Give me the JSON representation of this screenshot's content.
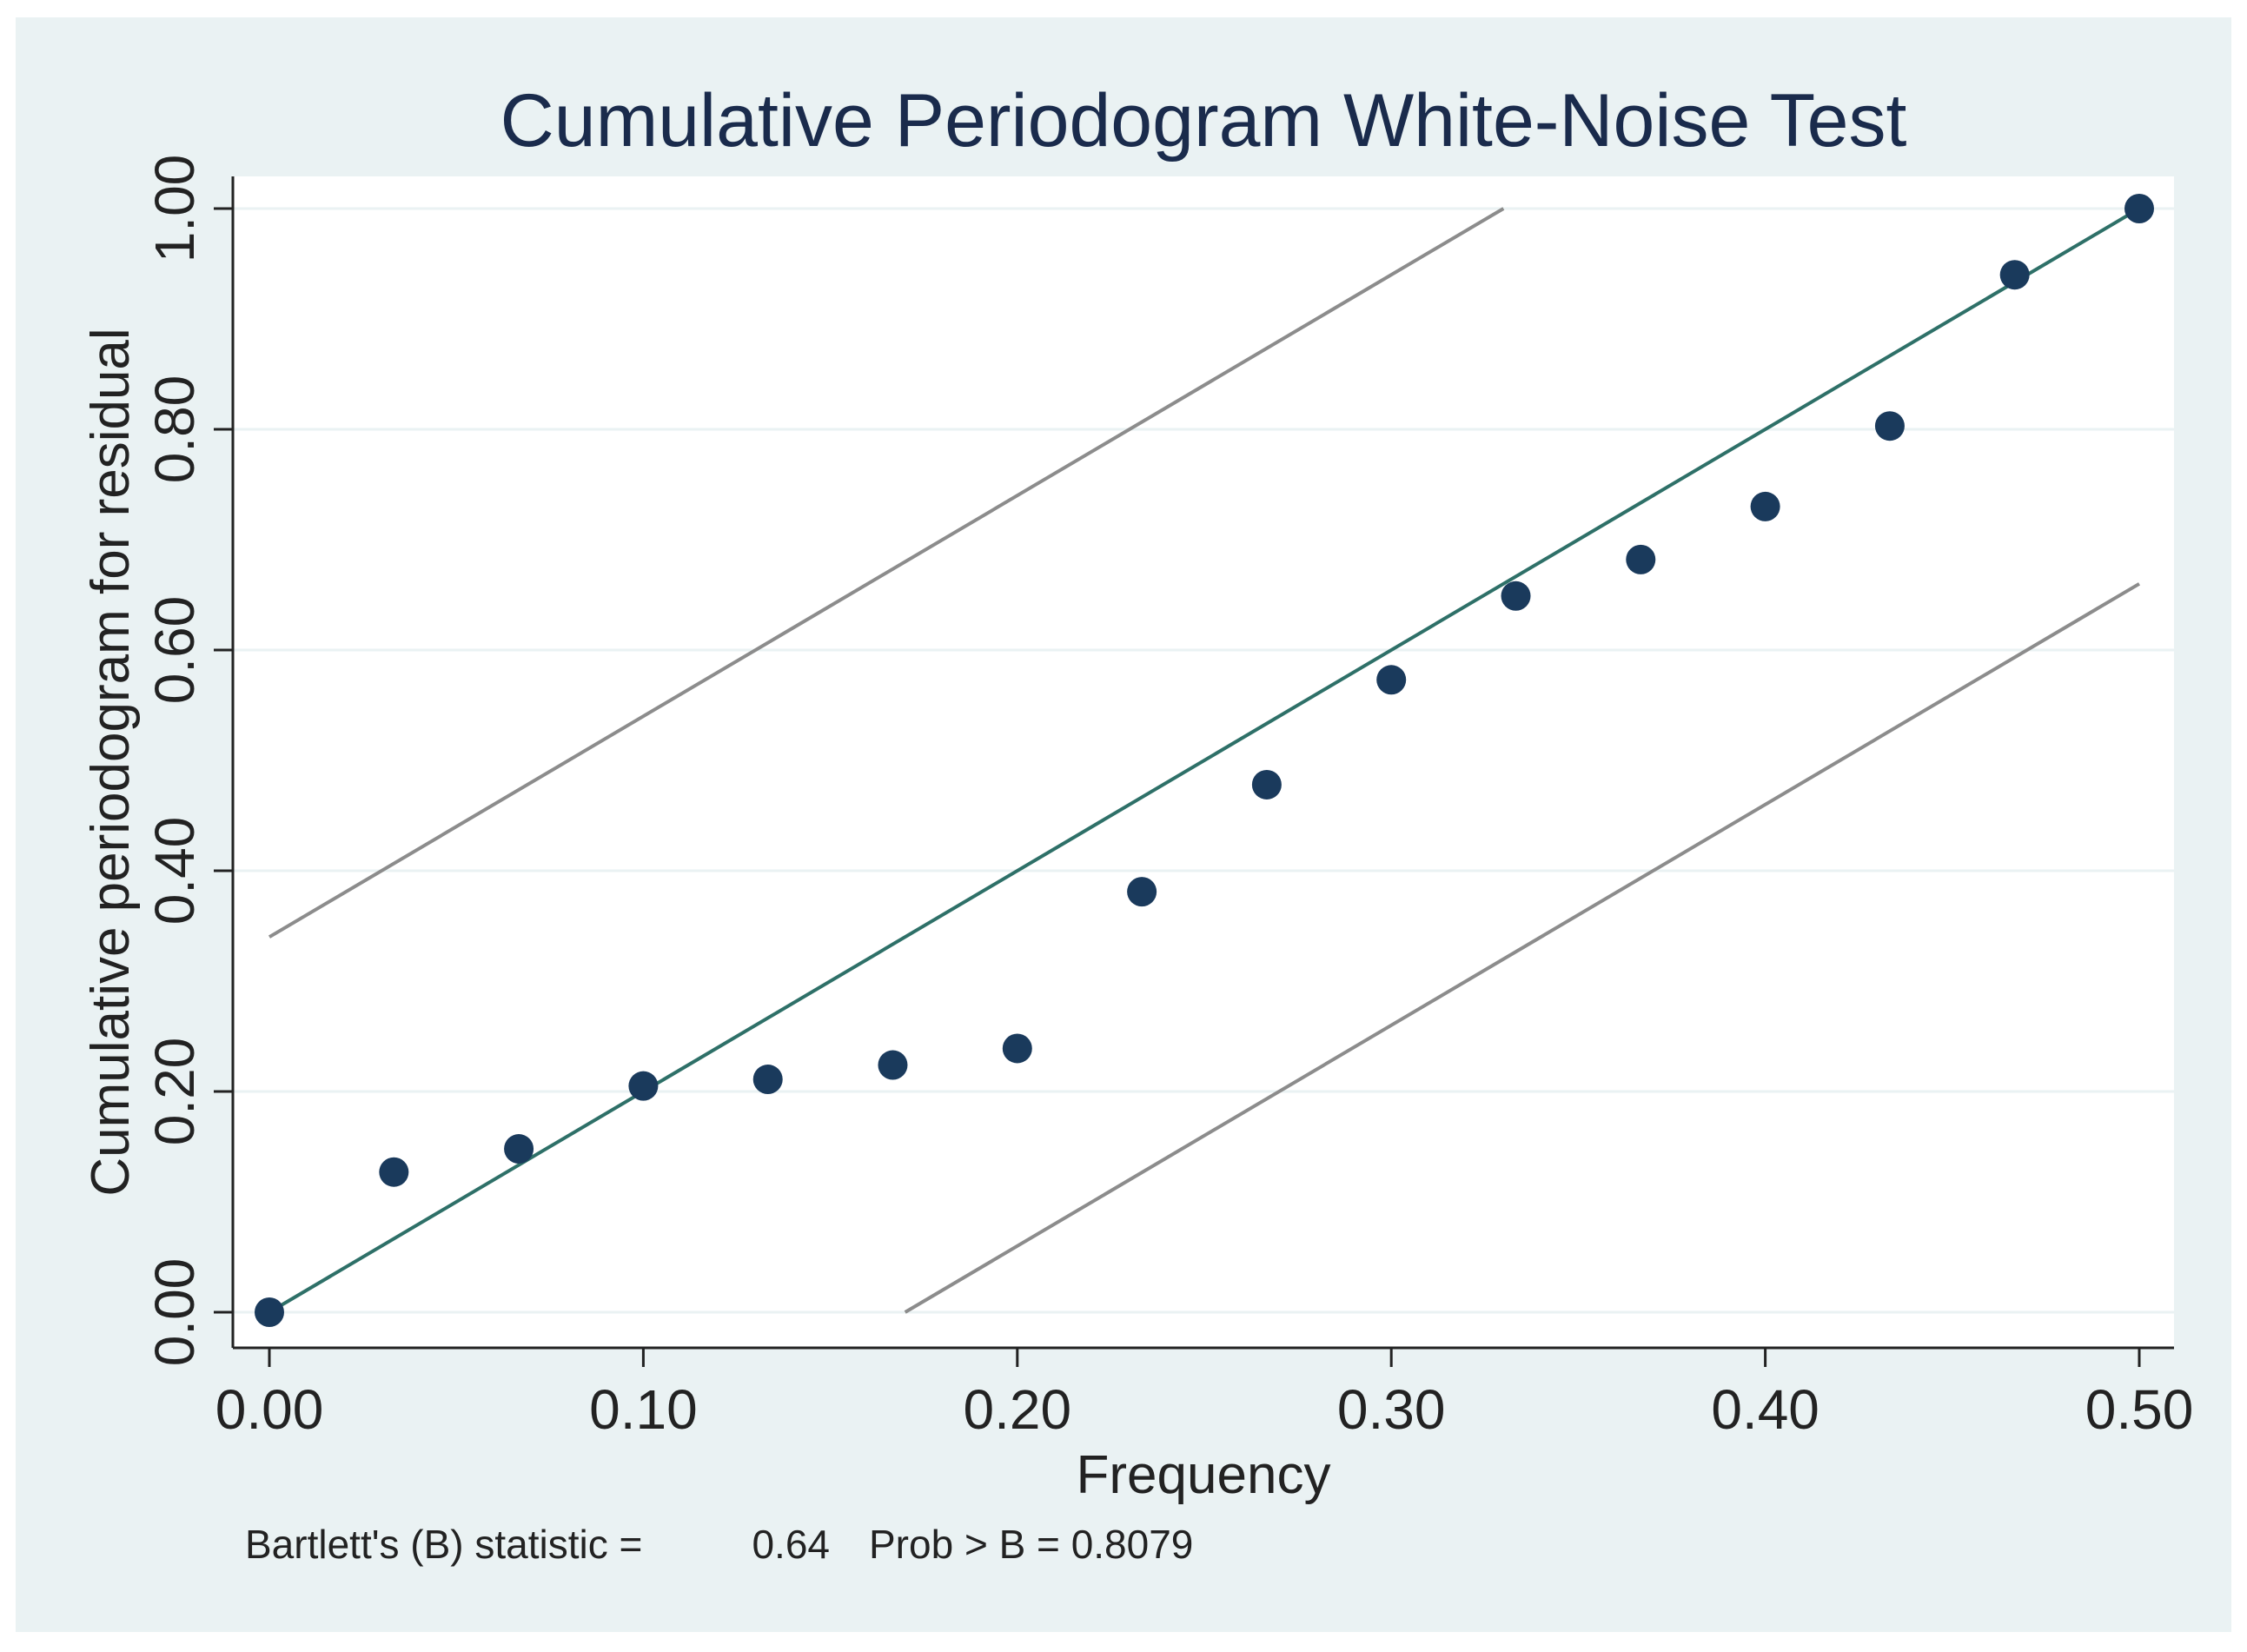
{
  "chart_data": {
    "type": "scatter",
    "title": "Cumulative Periodogram White-Noise Test",
    "xlabel": "Frequency",
    "ylabel": "Cumulative periodogram for residual",
    "xlim": [
      0,
      0.5
    ],
    "ylim": [
      0,
      1.0
    ],
    "x_ticks": [
      "0.00",
      "0.10",
      "0.20",
      "0.30",
      "0.40",
      "0.50"
    ],
    "y_ticks": [
      "0.00",
      "0.20",
      "0.40",
      "0.60",
      "0.80",
      "1.00"
    ],
    "grid": true,
    "series": [
      {
        "name": "cumulative periodogram",
        "x": [
          0.0,
          0.0333,
          0.0667,
          0.1,
          0.1333,
          0.1667,
          0.2,
          0.2333,
          0.2667,
          0.3,
          0.3333,
          0.3667,
          0.4,
          0.4333,
          0.4667,
          0.5
        ],
        "y": [
          0.0,
          0.127,
          0.148,
          0.205,
          0.211,
          0.224,
          0.239,
          0.381,
          0.478,
          0.573,
          0.649,
          0.682,
          0.73,
          0.803,
          0.94,
          1.0
        ]
      }
    ],
    "reference_line": {
      "x": [
        0.0,
        0.5
      ],
      "y": [
        0.0,
        1.0
      ]
    },
    "confidence_bands": [
      {
        "name": "upper",
        "x": [
          0.0,
          0.33
        ],
        "y": [
          0.34,
          1.0
        ]
      },
      {
        "name": "lower",
        "x": [
          0.17,
          0.5
        ],
        "y": [
          0.0,
          0.66
        ]
      }
    ],
    "annotation": {
      "statistic_label": "Bartlett's (B) statistic =",
      "statistic_value": "0.64",
      "prob_label": "Prob > B = 0.8079"
    },
    "colors": {
      "outer_background": "#eaf2f3",
      "plot_background": "#ffffff",
      "marker": "#1a3a5c",
      "reference_line": "#2e7068",
      "band_line": "#8c8c8c",
      "grid": "#eaf2f3",
      "title": "#1a2b4c"
    }
  }
}
